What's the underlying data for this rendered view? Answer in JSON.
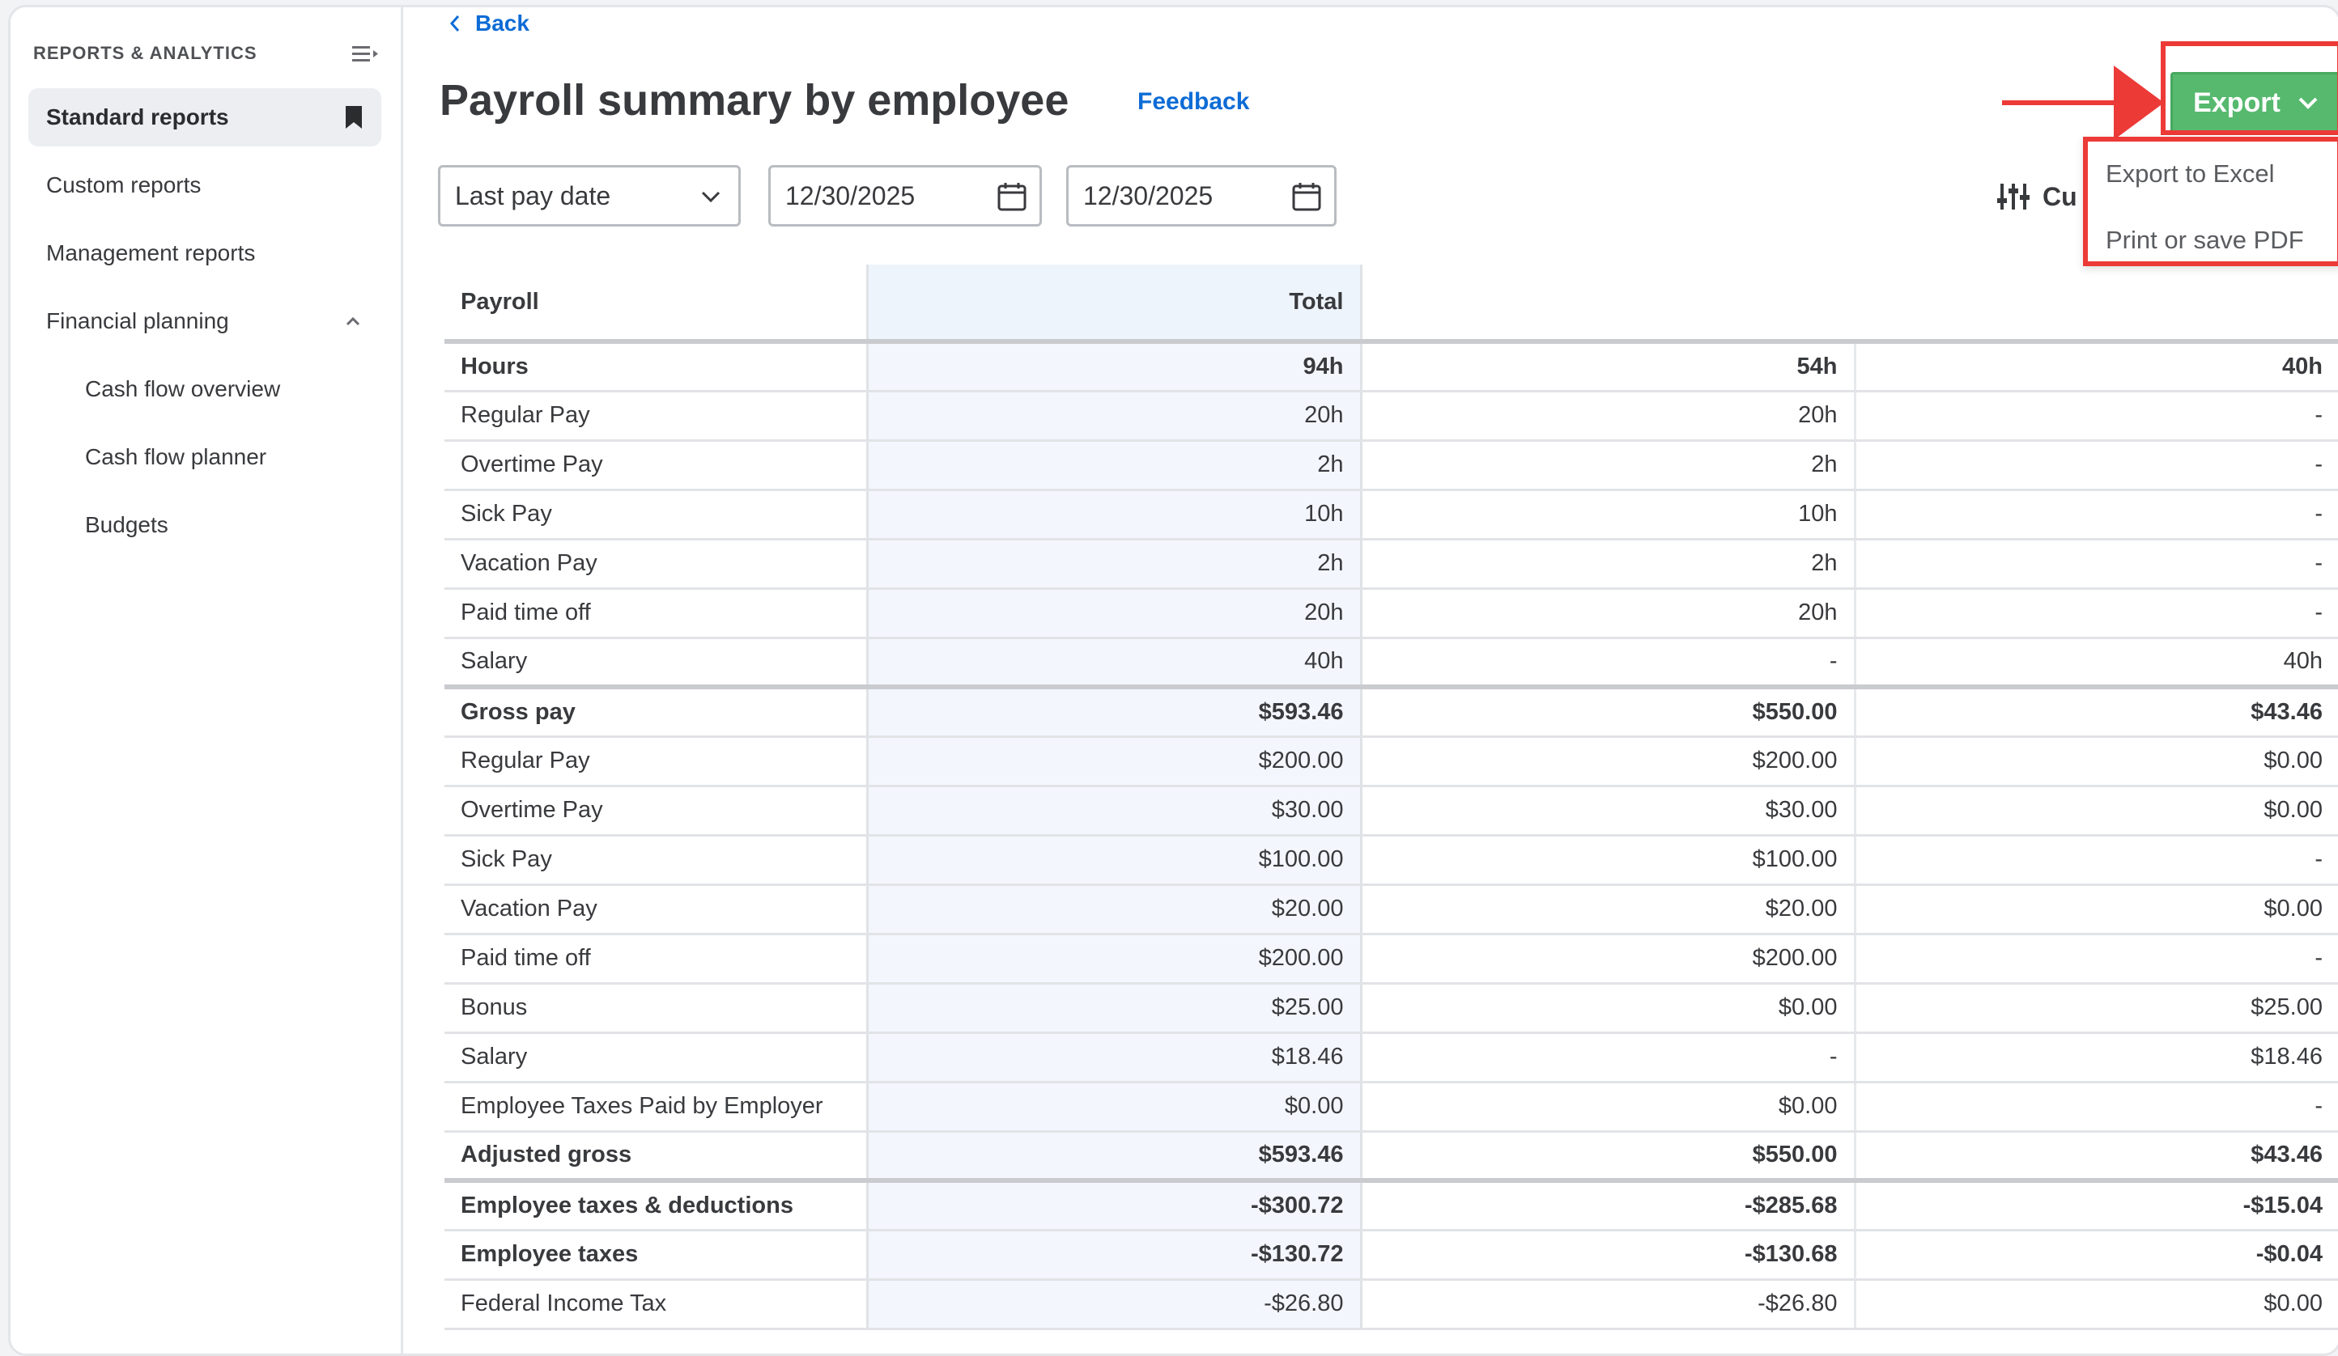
{
  "sidebar": {
    "heading": "REPORTS & ANALYTICS",
    "items": [
      {
        "label": "Standard reports",
        "active": true,
        "icon": "bookmark-icon"
      },
      {
        "label": "Custom reports"
      },
      {
        "label": "Management reports"
      },
      {
        "label": "Financial planning",
        "icon": "chevron-up-icon"
      },
      {
        "label": "Cash flow overview",
        "sub": true
      },
      {
        "label": "Cash flow planner",
        "sub": true
      },
      {
        "label": "Budgets",
        "sub": true
      }
    ]
  },
  "header": {
    "back_label": "Back",
    "title": "Payroll summary by employee",
    "feedback_label": "Feedback"
  },
  "filters": {
    "date_range_select": "Last pay date",
    "start_date": "12/30/2025",
    "end_date": "12/30/2025",
    "customize_label": "Cu"
  },
  "export": {
    "button_label": "Export",
    "menu": [
      "Export to Excel",
      "Print or save PDF"
    ],
    "button_color": "#56b96e",
    "highlight_color": "#ec3a37"
  },
  "table": {
    "columns": [
      "Payroll",
      "Total",
      "",
      ""
    ],
    "rows": [
      {
        "cells": [
          "Hours",
          "94h",
          "54h",
          "40h"
        ],
        "bold": true,
        "section_start": true
      },
      {
        "cells": [
          "Regular Pay",
          "20h",
          "20h",
          "-"
        ]
      },
      {
        "cells": [
          "Overtime Pay",
          "2h",
          "2h",
          "-"
        ]
      },
      {
        "cells": [
          "Sick Pay",
          "10h",
          "10h",
          "-"
        ]
      },
      {
        "cells": [
          "Vacation Pay",
          "2h",
          "2h",
          "-"
        ]
      },
      {
        "cells": [
          "Paid time off",
          "20h",
          "20h",
          "-"
        ]
      },
      {
        "cells": [
          "Salary",
          "40h",
          "-",
          "40h"
        ]
      },
      {
        "cells": [
          "Gross pay",
          "$593.46",
          "$550.00",
          "$43.46"
        ],
        "bold": true,
        "section_start": true
      },
      {
        "cells": [
          "Regular Pay",
          "$200.00",
          "$200.00",
          "$0.00"
        ]
      },
      {
        "cells": [
          "Overtime Pay",
          "$30.00",
          "$30.00",
          "$0.00"
        ]
      },
      {
        "cells": [
          "Sick Pay",
          "$100.00",
          "$100.00",
          "-"
        ]
      },
      {
        "cells": [
          "Vacation Pay",
          "$20.00",
          "$20.00",
          "$0.00"
        ]
      },
      {
        "cells": [
          "Paid time off",
          "$200.00",
          "$200.00",
          "-"
        ]
      },
      {
        "cells": [
          "Bonus",
          "$25.00",
          "$0.00",
          "$25.00"
        ]
      },
      {
        "cells": [
          "Salary",
          "$18.46",
          "-",
          "$18.46"
        ]
      },
      {
        "cells": [
          "Employee Taxes Paid by Employer",
          "$0.00",
          "$0.00",
          "-"
        ]
      },
      {
        "cells": [
          "Adjusted gross",
          "$593.46",
          "$550.00",
          "$43.46"
        ],
        "bold": true
      },
      {
        "cells": [
          "Employee taxes & deductions",
          "-$300.72",
          "-$285.68",
          "-$15.04"
        ],
        "bold": true,
        "section_start": true
      },
      {
        "cells": [
          "Employee taxes",
          "-$130.72",
          "-$130.68",
          "-$0.04"
        ],
        "bold": true
      },
      {
        "cells": [
          "Federal Income Tax",
          "-$26.80",
          "-$26.80",
          "$0.00"
        ]
      }
    ]
  }
}
